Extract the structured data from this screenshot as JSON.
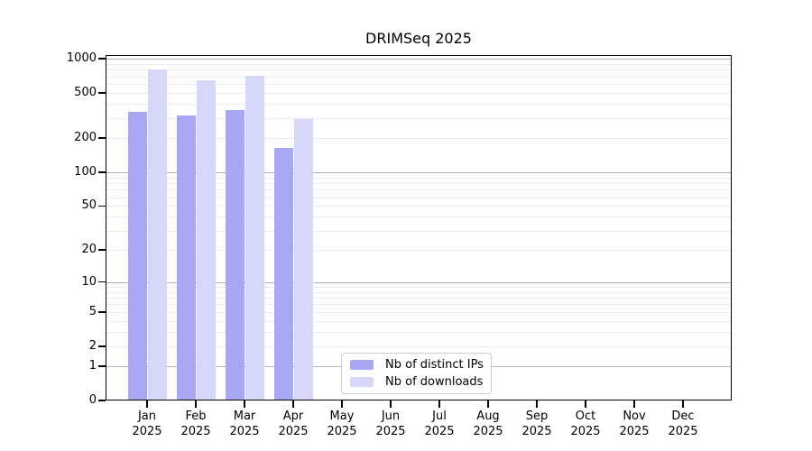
{
  "chart_data": {
    "type": "bar",
    "title": "DRIMSeq 2025",
    "year": "2025",
    "months": [
      "Jan",
      "Feb",
      "Mar",
      "Apr",
      "May",
      "Jun",
      "Jul",
      "Aug",
      "Sep",
      "Oct",
      "Nov",
      "Dec"
    ],
    "series": [
      {
        "name": "Nb of distinct IPs",
        "color": "#a7a7f2",
        "values": [
          340,
          315,
          355,
          163,
          null,
          null,
          null,
          null,
          null,
          null,
          null,
          null
        ]
      },
      {
        "name": "Nb of downloads",
        "color": "#d7d7fa",
        "values": [
          805,
          645,
          710,
          293,
          null,
          null,
          null,
          null,
          null,
          null,
          null,
          null
        ]
      }
    ],
    "y_axis": {
      "scale": "log1p",
      "tick_values": [
        0,
        1,
        2,
        5,
        10,
        20,
        50,
        100,
        200,
        500,
        1000
      ],
      "max_value": 1000
    },
    "x_axis": {
      "tick_label_line2": "2025"
    },
    "grid": {
      "major_at": [
        1,
        10,
        100,
        1000
      ],
      "major_color": "#b3b3b3",
      "minor_color": "#ececec"
    },
    "legend": {
      "position": "bottom-center"
    }
  }
}
